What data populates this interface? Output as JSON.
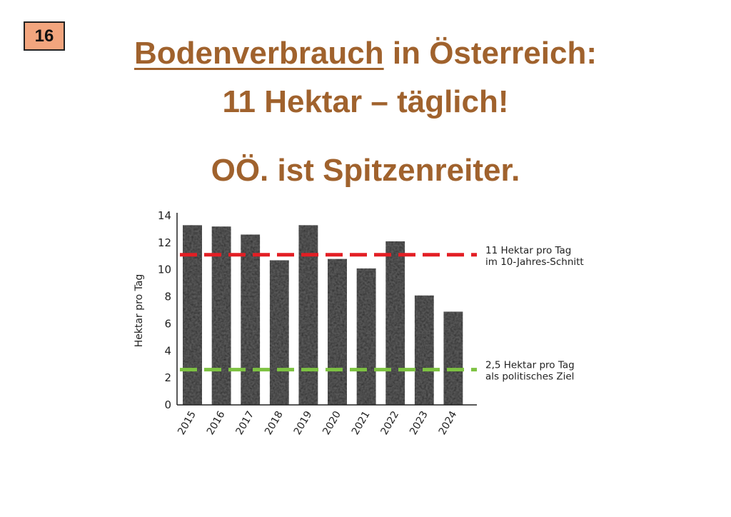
{
  "slide_number": "16",
  "title": {
    "line1_underlined": "Bodenverbrauch",
    "line1_rest": " in Österreich:",
    "line2": "11 Hektar – täglich!",
    "line3": "OÖ. ist Spitzenreiter."
  },
  "colors": {
    "title": "#a0622d",
    "badge": "#f2a57e",
    "red_line": "#e31e24",
    "green_line": "#7dc242",
    "bar": "#6a6a6a"
  },
  "chart_data": {
    "type": "bar",
    "title": "",
    "xlabel": "",
    "ylabel": "Hektar pro Tag",
    "ylim": [
      0,
      14
    ],
    "yticks": [
      0,
      2,
      4,
      6,
      8,
      10,
      12,
      14
    ],
    "categories": [
      "2015",
      "2016",
      "2017",
      "2018",
      "2019",
      "2020",
      "2021",
      "2022",
      "2023",
      "2024"
    ],
    "values": [
      13.3,
      13.2,
      12.6,
      10.7,
      13.3,
      10.8,
      10.1,
      12.1,
      8.1,
      6.9
    ],
    "reference_lines": [
      {
        "value": 11,
        "color": "#e31e24",
        "label_lines": [
          "11 Hektar pro Tag",
          "im 10-Jahres-Schnitt"
        ]
      },
      {
        "value": 2.5,
        "color": "#7dc242",
        "label_lines": [
          "2,5 Hektar pro Tag",
          "als politisches Ziel"
        ]
      }
    ],
    "grid": false,
    "legend": "none"
  }
}
